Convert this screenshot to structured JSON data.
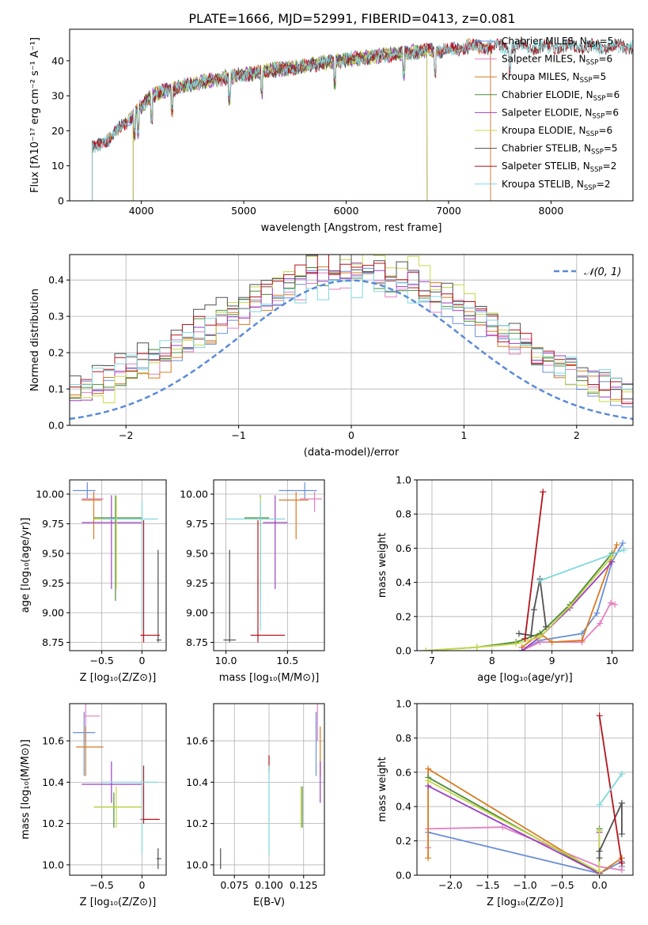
{
  "figure": {
    "title": "PLATE=1666, MJD=52991, FIBERID=0413, z=0.081"
  },
  "chart_data": [
    {
      "id": "spectrum",
      "type": "line",
      "xlabel": "wavelength [Angstrom, rest frame]",
      "ylabel": "Flux [fλ10⁻¹⁷ erg cm⁻² s⁻¹ A⁻¹]",
      "xlim": [
        3300,
        8800
      ],
      "ylim": [
        0,
        49
      ],
      "xticks": [
        4000,
        5000,
        6000,
        7000,
        8000
      ],
      "yticks": [
        0,
        10,
        20,
        30,
        40
      ],
      "grid": false,
      "legend_position": "top-right",
      "anchor_x": [
        3520,
        3700,
        3900,
        4100,
        4300,
        4600,
        5000,
        5200,
        5500,
        5900,
        6200,
        6500,
        6800,
        7000,
        7200,
        7500,
        8000,
        8400
      ],
      "anchor_y": [
        15,
        18,
        24,
        30,
        32,
        34,
        36,
        37,
        38,
        40,
        41,
        42,
        43,
        43,
        44,
        44,
        44,
        44
      ],
      "series": [
        {
          "name": "Chabrier MILES, N_SSP=5",
          "color": "#6a8fd8",
          "x_range": [
            3520,
            7410
          ]
        },
        {
          "name": "Salpeter MILES, N_SSP=6",
          "color": "#e47fc0",
          "x_range": [
            3520,
            7410
          ]
        },
        {
          "name": "Kroupa MILES, N_SSP=5",
          "color": "#d97b21",
          "x_range": [
            3520,
            7410
          ]
        },
        {
          "name": "Chabrier ELODIE, N_SSP=6",
          "color": "#4a8a3a",
          "x_range": [
            3920,
            6790
          ]
        },
        {
          "name": "Salpeter ELODIE, N_SSP=6",
          "color": "#9b3fc2",
          "x_range": [
            3920,
            6790
          ]
        },
        {
          "name": "Kroupa ELODIE, N_SSP=6",
          "color": "#c8d84a",
          "x_range": [
            3920,
            6790
          ]
        },
        {
          "name": "Chabrier STELIB, N_SSP=5",
          "color": "#505050",
          "x_range": [
            3520,
            8800
          ]
        },
        {
          "name": "Salpeter STELIB, N_SSP=2",
          "color": "#b5141c",
          "x_range": [
            3520,
            8800
          ]
        },
        {
          "name": "Kroupa STELIB, N_SSP=2",
          "color": "#7fd8dc",
          "x_range": [
            3520,
            8800
          ]
        }
      ]
    },
    {
      "id": "residuals",
      "type": "line",
      "xlabel": "(data-model)/error",
      "ylabel": "Normed distribution",
      "xlim": [
        -2.5,
        2.5
      ],
      "ylim": [
        0,
        0.47
      ],
      "xticks": [
        -2,
        -1,
        0,
        1,
        2
      ],
      "yticks": [
        0.0,
        0.1,
        0.2,
        0.3,
        0.4
      ],
      "grid": true,
      "legend_position": "top-right",
      "legend": "𝒩(0, 1)",
      "reference_curve": {
        "name": "𝒩(0, 1)",
        "mean": 0,
        "sigma": 1,
        "color": "#5b8bd6"
      },
      "step_series_colors": [
        "#6a8fd8",
        "#e47fc0",
        "#d97b21",
        "#4a8a3a",
        "#9b3fc2",
        "#c8d84a",
        "#505050",
        "#b5141c",
        "#7fd8dc"
      ],
      "bin_width": 0.1,
      "step_peak_values": [
        0.38,
        0.37,
        0.4,
        0.39,
        0.4,
        0.45,
        0.42,
        0.42,
        0.36
      ],
      "step_offsets": [
        -0.05,
        0.04,
        0.1,
        -0.12,
        0.2,
        0.25,
        -0.2,
        -0.15,
        0.05
      ],
      "step_widths": [
        1.25,
        1.3,
        1.2,
        1.3,
        1.25,
        1.15,
        1.35,
        1.3,
        1.4
      ]
    },
    {
      "id": "age_vs_Z",
      "type": "scatter",
      "xlabel": "Z [log₁₀(Z/Z⊙)]",
      "ylabel": "age  [log₁₀(age/yr)]",
      "xlim": [
        -0.9,
        0.3
      ],
      "ylim": [
        8.68,
        10.12
      ],
      "xticks": [
        -0.5,
        0.0
      ],
      "yticks": [
        8.75,
        9.0,
        9.25,
        9.5,
        9.75,
        10.0
      ],
      "grid": true,
      "points": [
        {
          "color": "#6a8fd8",
          "x": [
            -0.68,
            -0.86,
            -0.58
          ],
          "y": [
            10.03,
            9.96,
            10.1
          ]
        },
        {
          "color": "#e47fc0",
          "x": [
            -0.6,
            -0.75,
            -0.48
          ],
          "y": [
            9.96,
            9.95,
            10.02
          ]
        },
        {
          "color": "#d97b21",
          "x": [
            -0.6,
            -0.75,
            -0.5
          ],
          "y": [
            9.95,
            9.62,
            10.02
          ]
        },
        {
          "color": "#4a8a3a",
          "x": [
            -0.33,
            -0.6,
            0.0
          ],
          "y": [
            9.8,
            9.1,
            9.99
          ]
        },
        {
          "color": "#9b3fc2",
          "x": [
            -0.38,
            -0.75,
            0.0
          ],
          "y": [
            9.76,
            9.2,
            9.99
          ]
        },
        {
          "color": "#c8d84a",
          "x": [
            -0.32,
            -0.6,
            0.0
          ],
          "y": [
            9.79,
            9.2,
            9.98
          ]
        },
        {
          "color": "#505050",
          "x": [
            0.2,
            0.18,
            0.24
          ],
          "y": [
            8.77,
            8.75,
            9.53
          ]
        },
        {
          "color": "#b5141c",
          "x": [
            0.02,
            -0.02,
            0.22
          ],
          "y": [
            8.81,
            8.75,
            9.78
          ]
        },
        {
          "color": "#7fd8dc",
          "x": [
            0.0,
            -0.5,
            0.2
          ],
          "y": [
            9.79,
            8.85,
            9.94
          ]
        }
      ]
    },
    {
      "id": "age_vs_mass",
      "type": "scatter",
      "xlabel": "mass [log₁₀(M/M⊙)]",
      "ylabel": "",
      "xlim": [
        9.9,
        10.8
      ],
      "ylim": [
        8.68,
        10.12
      ],
      "xticks": [
        10.0,
        10.5
      ],
      "yticks": [
        8.75,
        9.0,
        9.25,
        9.5,
        9.75,
        10.0
      ],
      "grid": true,
      "points": [
        {
          "color": "#6a8fd8",
          "x": [
            10.64,
            10.43,
            10.74
          ],
          "y": [
            10.03,
            9.96,
            10.1
          ]
        },
        {
          "color": "#e47fc0",
          "x": [
            10.72,
            10.6,
            10.78
          ],
          "y": [
            9.96,
            9.85,
            10.02
          ]
        },
        {
          "color": "#d97b21",
          "x": [
            10.57,
            10.43,
            10.67
          ],
          "y": [
            9.95,
            9.62,
            10.02
          ]
        },
        {
          "color": "#4a8a3a",
          "x": [
            10.28,
            10.15,
            10.35
          ],
          "y": [
            9.8,
            9.1,
            9.99
          ]
        },
        {
          "color": "#9b3fc2",
          "x": [
            10.4,
            10.3,
            10.5
          ],
          "y": [
            9.76,
            9.2,
            9.99
          ]
        },
        {
          "color": "#c8d84a",
          "x": [
            10.28,
            10.15,
            10.38
          ],
          "y": [
            9.79,
            9.2,
            9.98
          ]
        },
        {
          "color": "#505050",
          "x": [
            10.03,
            9.98,
            10.08
          ],
          "y": [
            8.77,
            8.75,
            9.53
          ]
        },
        {
          "color": "#b5141c",
          "x": [
            10.26,
            10.2,
            10.48
          ],
          "y": [
            8.81,
            8.75,
            9.78
          ]
        },
        {
          "color": "#7fd8dc",
          "x": [
            10.28,
            10.0,
            10.48
          ],
          "y": [
            9.79,
            8.85,
            9.94
          ]
        }
      ]
    },
    {
      "id": "weight_vs_age",
      "type": "line",
      "xlabel": "age  [log₁₀(age/yr)]",
      "ylabel": "mass weight",
      "xlim": [
        6.75,
        10.35
      ],
      "ylim": [
        0,
        1
      ],
      "xticks": [
        7,
        8,
        9,
        10
      ],
      "yticks": [
        0.0,
        0.2,
        0.4,
        0.6,
        0.8,
        1.0
      ],
      "grid": true,
      "series": [
        {
          "color": "#6a8fd8",
          "x": [
            8.5,
            8.8,
            9.5,
            9.75,
            10.0,
            10.18
          ],
          "y": [
            0.0,
            0.06,
            0.1,
            0.22,
            0.52,
            0.63
          ]
        },
        {
          "color": "#e47fc0",
          "x": [
            8.5,
            8.8,
            9.5,
            9.8,
            9.98,
            10.05
          ],
          "y": [
            0.0,
            0.05,
            0.05,
            0.16,
            0.28,
            0.27
          ]
        },
        {
          "color": "#d97b21",
          "x": [
            8.5,
            8.8,
            9.0,
            9.5,
            10.0,
            10.08
          ],
          "y": [
            0.02,
            0.1,
            0.05,
            0.06,
            0.55,
            0.62
          ]
        },
        {
          "color": "#4a8a3a",
          "x": [
            6.9,
            7.75,
            8.4,
            8.8,
            9.3,
            10.0
          ],
          "y": [
            0.0,
            0.02,
            0.05,
            0.1,
            0.27,
            0.57
          ]
        },
        {
          "color": "#9b3fc2",
          "x": [
            8.5,
            8.8,
            9.3,
            10.0
          ],
          "y": [
            0.0,
            0.08,
            0.25,
            0.52
          ]
        },
        {
          "color": "#c8d84a",
          "x": [
            6.9,
            7.75,
            8.4,
            8.8,
            9.3,
            10.0
          ],
          "y": [
            0.0,
            0.02,
            0.04,
            0.08,
            0.26,
            0.55
          ]
        },
        {
          "color": "#505050",
          "x": [
            8.45,
            8.65,
            8.7,
            8.8,
            8.9
          ],
          "y": [
            0.1,
            0.09,
            0.24,
            0.42,
            0.14
          ]
        },
        {
          "color": "#b5141c",
          "x": [
            8.55,
            8.85
          ],
          "y": [
            0.07,
            0.93
          ]
        },
        {
          "color": "#7fd8dc",
          "x": [
            8.8,
            10.2
          ],
          "y": [
            0.41,
            0.59
          ]
        }
      ]
    },
    {
      "id": "mass_vs_Z",
      "type": "scatter",
      "xlabel": "Z [log₁₀(Z/Z⊙)]",
      "ylabel": "mass [log₁₀(M/M⊙)]",
      "xlim": [
        -0.9,
        0.3
      ],
      "ylim": [
        9.95,
        10.78
      ],
      "xticks": [
        -0.5,
        0.0
      ],
      "yticks": [
        10.0,
        10.2,
        10.4,
        10.6
      ],
      "grid": true,
      "points": [
        {
          "color": "#6a8fd8",
          "x": [
            -0.72,
            -0.86,
            -0.58
          ],
          "y": [
            10.64,
            10.43,
            10.74
          ]
        },
        {
          "color": "#e47fc0",
          "x": [
            -0.7,
            -0.72,
            -0.52
          ],
          "y": [
            10.72,
            10.6,
            10.78
          ]
        },
        {
          "color": "#d97b21",
          "x": [
            -0.7,
            -0.82,
            -0.48
          ],
          "y": [
            10.57,
            10.43,
            10.67
          ]
        },
        {
          "color": "#4a8a3a",
          "x": [
            -0.35,
            -0.6,
            0.0
          ],
          "y": [
            10.28,
            10.18,
            10.35
          ]
        },
        {
          "color": "#9b3fc2",
          "x": [
            -0.38,
            -0.75,
            0.0
          ],
          "y": [
            10.39,
            10.3,
            10.5
          ]
        },
        {
          "color": "#c8d84a",
          "x": [
            -0.32,
            -0.6,
            0.0
          ],
          "y": [
            10.28,
            10.18,
            10.38
          ]
        },
        {
          "color": "#505050",
          "x": [
            0.2,
            0.18,
            0.24
          ],
          "y": [
            10.03,
            9.98,
            10.08
          ]
        },
        {
          "color": "#b5141c",
          "x": [
            0.02,
            -0.02,
            0.22
          ],
          "y": [
            10.22,
            10.2,
            10.48
          ]
        },
        {
          "color": "#7fd8dc",
          "x": [
            0.0,
            -0.5,
            0.2
          ],
          "y": [
            10.4,
            10.05,
            10.48
          ]
        }
      ]
    },
    {
      "id": "mass_vs_EBV",
      "type": "scatter",
      "xlabel": "E(B-V)",
      "ylabel": "",
      "xlim": [
        0.06,
        0.14
      ],
      "ylim": [
        9.95,
        10.78
      ],
      "xticks": [
        0.075,
        0.1,
        0.125
      ],
      "yticks": [
        10.0,
        10.2,
        10.4,
        10.6
      ],
      "grid": true,
      "points": [
        {
          "color": "#6a8fd8",
          "x": [
            0.134,
            0.134,
            0.134
          ],
          "y": [
            10.64,
            10.43,
            10.74
          ]
        },
        {
          "color": "#e47fc0",
          "x": [
            0.135,
            0.135,
            0.135
          ],
          "y": [
            10.72,
            10.6,
            10.78
          ]
        },
        {
          "color": "#d97b21",
          "x": [
            0.137,
            0.137,
            0.137
          ],
          "y": [
            10.57,
            10.43,
            10.67
          ]
        },
        {
          "color": "#4a8a3a",
          "x": [
            0.124,
            0.124,
            0.124
          ],
          "y": [
            10.28,
            10.18,
            10.38
          ]
        },
        {
          "color": "#9b3fc2",
          "x": [
            0.137,
            0.137,
            0.137
          ],
          "y": [
            10.39,
            10.3,
            10.5
          ]
        },
        {
          "color": "#c8d84a",
          "x": [
            0.123,
            0.123,
            0.123
          ],
          "y": [
            10.28,
            10.18,
            10.38
          ]
        },
        {
          "color": "#505050",
          "x": [
            0.065,
            0.065,
            0.065
          ],
          "y": [
            10.03,
            9.98,
            10.08
          ]
        },
        {
          "color": "#b5141c",
          "x": [
            0.1,
            0.1,
            0.1
          ],
          "y": [
            10.5,
            10.45,
            10.53
          ]
        },
        {
          "color": "#7fd8dc",
          "x": [
            0.1,
            0.1,
            0.1
          ],
          "y": [
            10.3,
            10.05,
            10.48
          ]
        }
      ]
    },
    {
      "id": "weight_vs_Z",
      "type": "line",
      "xlabel": "Z [log₁₀(Z/Z⊙)]",
      "ylabel": "mass weight",
      "xlim": [
        -2.45,
        0.45
      ],
      "ylim": [
        0,
        1
      ],
      "xticks": [
        -2.0,
        -1.5,
        -1.0,
        -0.5,
        0.0
      ],
      "yticks": [
        0.0,
        0.2,
        0.4,
        0.6,
        0.8,
        1.0
      ],
      "grid": true,
      "series": [
        {
          "color": "#6a8fd8",
          "x": [
            -2.3,
            0.0,
            0.3,
            0.3
          ],
          "y": [
            0.25,
            0.01,
            0.08,
            0.05
          ]
        },
        {
          "color": "#e47fc0",
          "x": [
            -2.3,
            -2.3,
            -1.3,
            0.0,
            0.3,
            0.3
          ],
          "y": [
            0.16,
            0.27,
            0.28,
            0.05,
            0.03,
            0.1
          ]
        },
        {
          "color": "#d97b21",
          "x": [
            -2.3,
            -2.3,
            0.0,
            0.3
          ],
          "y": [
            0.1,
            0.62,
            0.01,
            0.1
          ]
        },
        {
          "color": "#4a8a3a",
          "x": [
            -2.3,
            0.0,
            0.0
          ],
          "y": [
            0.57,
            0.01,
            0.27
          ]
        },
        {
          "color": "#9b3fc2",
          "x": [
            -2.3,
            0.0,
            0.0
          ],
          "y": [
            0.52,
            0.01,
            0.25
          ]
        },
        {
          "color": "#c8d84a",
          "x": [
            -2.3,
            0.0,
            0.0
          ],
          "y": [
            0.55,
            0.02,
            0.26
          ]
        },
        {
          "color": "#505050",
          "x": [
            0.0,
            0.0,
            0.3,
            0.3
          ],
          "y": [
            0.1,
            0.14,
            0.42,
            0.24
          ]
        },
        {
          "color": "#b5141c",
          "x": [
            0.0,
            0.3
          ],
          "y": [
            0.93,
            0.07
          ]
        },
        {
          "color": "#7fd8dc",
          "x": [
            0.0,
            0.3
          ],
          "y": [
            0.41,
            0.59
          ]
        }
      ]
    }
  ]
}
